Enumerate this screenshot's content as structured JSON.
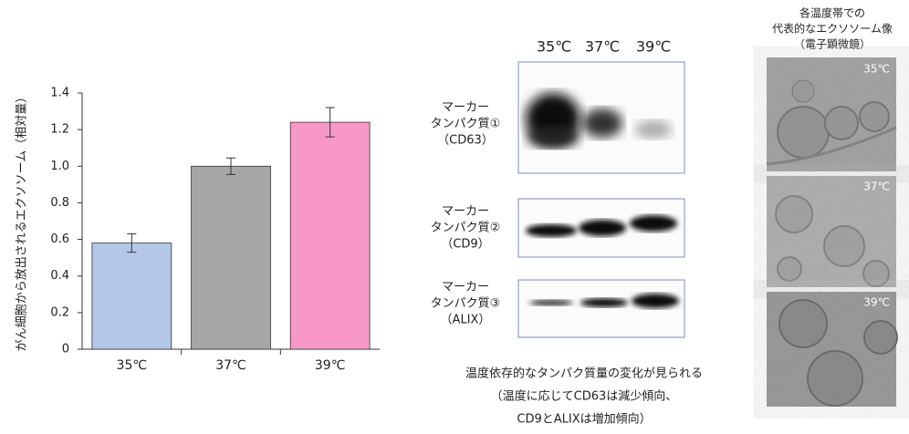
{
  "chart_data": {
    "type": "bar",
    "y_label": "がん細胞から放出されるエクソソーム（相対量）",
    "categories": [
      "35℃",
      "37℃",
      "39℃"
    ],
    "values": [
      0.58,
      1.0,
      1.24
    ],
    "errors": [
      0.05,
      0.045,
      0.08
    ],
    "colors": [
      "#b4c7e7",
      "#a6a6a6",
      "#f898c8"
    ],
    "ylim": [
      0,
      1.4
    ],
    "yticks": [
      0,
      0.2,
      0.4,
      0.6,
      0.8,
      {
        "value": 1,
        "label": "1.0"
      },
      1.2,
      1.4
    ]
  },
  "blot": {
    "headers": [
      "35℃",
      "37℃",
      "39℃"
    ],
    "panels": [
      {
        "lines": [
          "マーカー",
          "タンパク質①",
          "（CD63）"
        ]
      },
      {
        "lines": [
          "マーカー",
          "タンパク質②",
          "（CD9）"
        ]
      },
      {
        "lines": [
          "マーカー",
          "タンパク質③",
          "（ALIX）"
        ]
      }
    ]
  },
  "caption": [
    "温度依存的なタンパク質量の変化が見られる",
    "（温度に応じてCD63は減少傾向、",
    "CD9とALIXは増加傾向）"
  ],
  "em": {
    "title": [
      "各温度帯での",
      "代表的なエクソソーム像",
      "（電子顕微鏡）"
    ],
    "labels": [
      "35℃",
      "37℃",
      "39℃"
    ]
  }
}
